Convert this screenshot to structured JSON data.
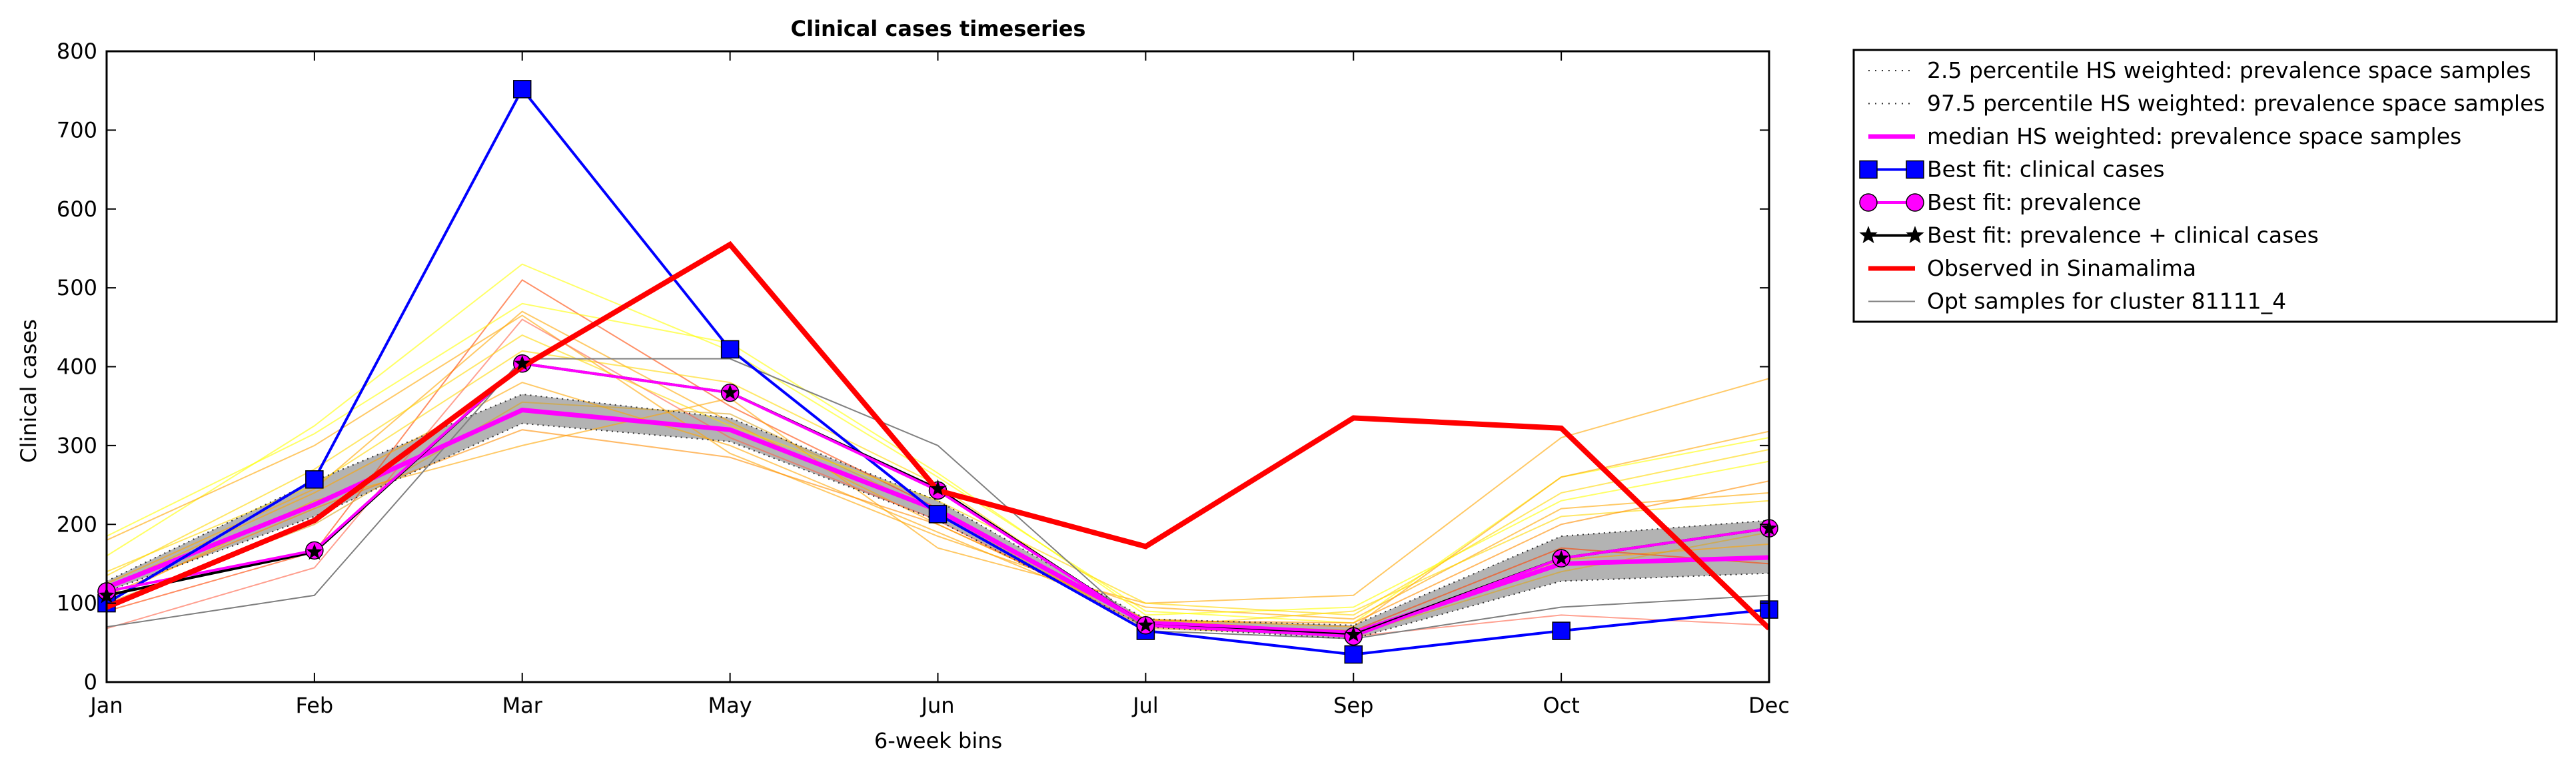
{
  "chart_data": {
    "type": "line",
    "title": "Clinical cases timeseries",
    "xlabel": "6-week bins",
    "ylabel": "Clinical cases",
    "categories": [
      "Jan",
      "Feb",
      "Mar",
      "May",
      "Jun",
      "Jul",
      "Sep",
      "Oct",
      "Dec"
    ],
    "ylim": [
      0,
      800
    ],
    "yticks": [
      "0",
      "100",
      "200",
      "300",
      "400",
      "500",
      "600",
      "700",
      "800"
    ],
    "grid": false,
    "legend_position": "outside-top-right",
    "band": {
      "lower": [
        115,
        210,
        328,
        305,
        205,
        70,
        55,
        128,
        138
      ],
      "upper": [
        128,
        255,
        365,
        335,
        230,
        80,
        72,
        185,
        205
      ],
      "color": "#b3b3b3"
    },
    "series": [
      {
        "name": "2.5 percentile HS weighted: prevalence space samples",
        "style": "dotted",
        "color": "#333333",
        "values": [
          115,
          210,
          328,
          305,
          205,
          70,
          55,
          128,
          138
        ]
      },
      {
        "name": "97.5 percentile HS weighted: prevalence space samples",
        "style": "dotted",
        "color": "#333333",
        "values": [
          128,
          255,
          365,
          335,
          230,
          80,
          72,
          185,
          205
        ]
      },
      {
        "name": "median HS weighted: prevalence space samples",
        "style": "thick",
        "color": "#ff00ff",
        "values": [
          120,
          225,
          345,
          320,
          218,
          75,
          62,
          150,
          158
        ]
      },
      {
        "name": "Best fit: clinical cases",
        "style": "square",
        "color": "#0000ff",
        "values": [
          100,
          257,
          752,
          422,
          213,
          65,
          35,
          65,
          92
        ]
      },
      {
        "name": "Best fit: prevalence",
        "style": "circle",
        "color": "#ff00ff",
        "values": [
          115,
          167,
          404,
          367,
          243,
          72,
          58,
          157,
          195
        ]
      },
      {
        "name": "Best fit: prevalence + clinical cases",
        "style": "star",
        "color": "#000000",
        "values": [
          110,
          165,
          404,
          367,
          245,
          72,
          60,
          157,
          195
        ]
      },
      {
        "name": "Observed in Sinamalima",
        "style": "thick",
        "color": "#ff0000",
        "values": [
          95,
          205,
          400,
          555,
          243,
          172,
          335,
          322,
          68
        ]
      },
      {
        "name": "Opt samples for cluster 81111_4",
        "style": "thin",
        "color": "#808080",
        "values": [
          70,
          110,
          410,
          410,
          300,
          65,
          55,
          95,
          110
        ]
      }
    ],
    "samples": [
      {
        "color": "#ffa500",
        "values": [
          125,
          245,
          470,
          330,
          200,
          80,
          62,
          155,
          175
        ]
      },
      {
        "color": "#ffff00",
        "values": [
          160,
          325,
          530,
          420,
          260,
          90,
          75,
          260,
          310
        ]
      },
      {
        "color": "#ff4500",
        "values": [
          90,
          165,
          510,
          350,
          220,
          75,
          65,
          170,
          150
        ]
      },
      {
        "color": "#ffa500",
        "values": [
          180,
          300,
          465,
          290,
          185,
          95,
          80,
          220,
          240
        ]
      },
      {
        "color": "#ffd700",
        "values": [
          140,
          250,
          420,
          380,
          250,
          70,
          90,
          210,
          230
        ]
      },
      {
        "color": "#ffa500",
        "values": [
          105,
          230,
          300,
          360,
          170,
          100,
          110,
          310,
          385
        ]
      },
      {
        "color": "#ff6347",
        "values": [
          68,
          145,
          460,
          310,
          205,
          70,
          58,
          85,
          72
        ]
      },
      {
        "color": "#ffff00",
        "values": [
          185,
          315,
          480,
          430,
          265,
          85,
          95,
          230,
          280
        ]
      },
      {
        "color": "#ffa500",
        "values": [
          120,
          240,
          380,
          300,
          190,
          80,
          70,
          260,
          318
        ]
      },
      {
        "color": "#daa520",
        "values": [
          100,
          200,
          355,
          340,
          215,
          68,
          60,
          140,
          190
        ]
      },
      {
        "color": "#ffd700",
        "values": [
          135,
          270,
          440,
          325,
          230,
          100,
          85,
          240,
          295
        ]
      },
      {
        "color": "#ff8c00",
        "values": [
          110,
          220,
          320,
          285,
          200,
          78,
          75,
          200,
          255
        ]
      }
    ]
  }
}
